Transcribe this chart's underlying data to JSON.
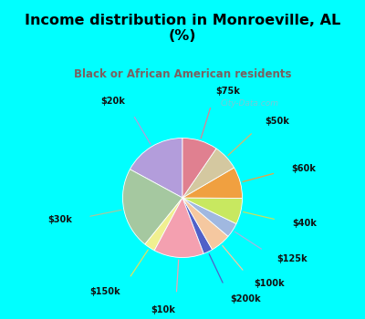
{
  "title": "Income distribution in Monroeville, AL\n(%)",
  "subtitle": "Black or African American residents",
  "title_color": "#000000",
  "subtitle_color": "#7a6060",
  "bg_cyan": "#00ffff",
  "bg_chart": "#d8ede0",
  "labels": [
    "$20k",
    "$30k",
    "$150k",
    "$10k",
    "$200k",
    "$100k",
    "$125k",
    "$40k",
    "$60k",
    "$50k",
    "$75k"
  ],
  "values": [
    17.0,
    22.0,
    3.0,
    13.5,
    2.5,
    5.5,
    4.0,
    7.0,
    8.5,
    7.0,
    9.5
  ],
  "colors": [
    "#b39ddb",
    "#a5c8a0",
    "#f0f090",
    "#f4a0b0",
    "#5060c8",
    "#f5c8a0",
    "#a0b8e0",
    "#c8e860",
    "#f0a040",
    "#d4c8a0",
    "#e08090"
  ],
  "line_colors": [
    "#b39ddb",
    "#a5c8a0",
    "#e0e060",
    "#f4a0b0",
    "#5060c8",
    "#f5c8a0",
    "#a0b8e0",
    "#c8e060",
    "#f0a040",
    "#d4b870",
    "#e08090"
  ],
  "figsize": [
    4.0,
    3.5
  ],
  "dpi": 100
}
